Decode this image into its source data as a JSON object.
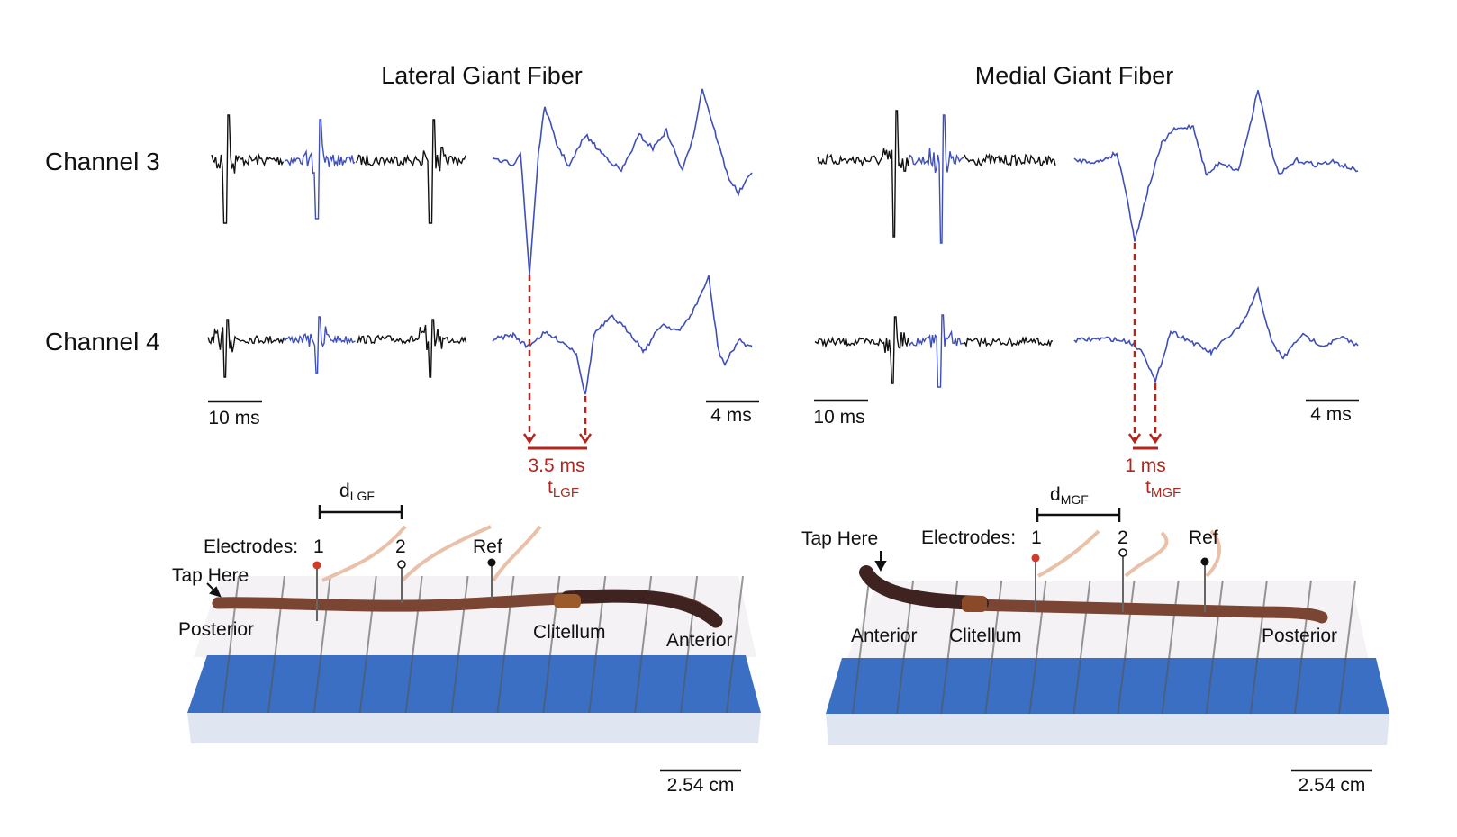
{
  "titles": {
    "left": "Lateral Giant Fiber",
    "right": "Medial Giant Fiber"
  },
  "channels": [
    "Channel 3",
    "Channel 4"
  ],
  "scale_bars": {
    "overview": "10 ms",
    "zoom": "4 ms",
    "length": "2.54 cm"
  },
  "left": {
    "delay": "3.5 ms",
    "t_main": "t",
    "t_sub": "LGF",
    "d_main": "d",
    "d_sub": "LGF",
    "electrodes_label": "Electrodes:",
    "e1": "1",
    "e2": "2",
    "ref": "Ref",
    "tap": "Tap Here",
    "end1": "Posterior",
    "clitellum": "Clitellum",
    "end2": "Anterior"
  },
  "right": {
    "delay": "1 ms",
    "t_main": "t",
    "t_sub": "MGF",
    "d_main": "d",
    "d_sub": "MGF",
    "electrodes_label": "Electrodes:",
    "e1": "1",
    "e2": "2",
    "ref": "Ref",
    "tap": "Tap Here",
    "end1": "Anterior",
    "clitellum": "Clitellum",
    "end2": "Posterior"
  },
  "colors": {
    "trace": "#111111",
    "highlight": "#3f4fb8",
    "annotation": "#b3261e",
    "board": "#3b6fc4",
    "worm": "#6b3a2a"
  }
}
